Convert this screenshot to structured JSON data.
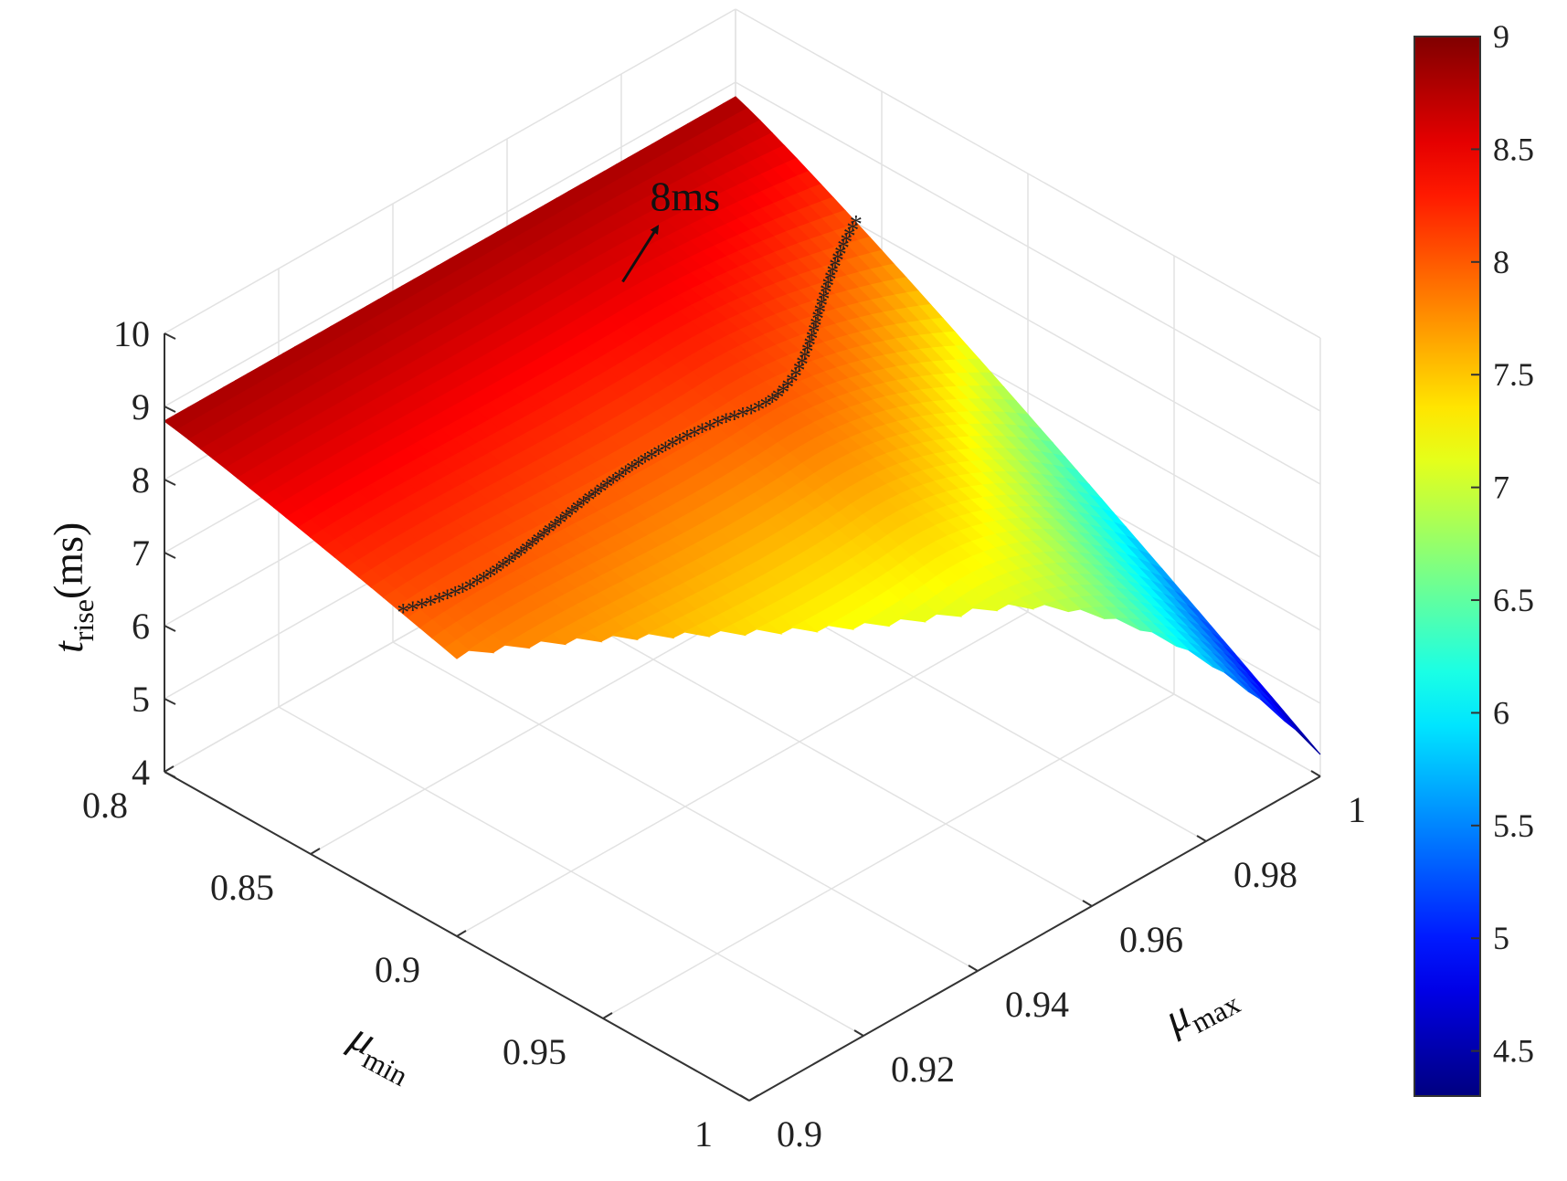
{
  "chart_data": {
    "type": "surface3d",
    "x_axis": {
      "name": "μ",
      "sub": "min",
      "ticks": [
        "0.8",
        "0.85",
        "0.9",
        "0.95",
        "1"
      ],
      "range": [
        0.8,
        1.0
      ]
    },
    "y_axis": {
      "name": "μ",
      "sub": "max",
      "ticks": [
        "0.9",
        "0.92",
        "0.94",
        "0.96",
        "0.98",
        "1"
      ],
      "range": [
        0.9,
        1.0
      ]
    },
    "z_axis": {
      "name": "t",
      "sub": "rise",
      "unit": "(ms)",
      "ticks": [
        "4",
        "5",
        "6",
        "7",
        "8",
        "9",
        "10"
      ],
      "range": [
        4,
        10
      ]
    },
    "colorbar": {
      "ticks": [
        "4.5",
        "5",
        "5.5",
        "6",
        "6.5",
        "7",
        "7.5",
        "8",
        "8.5",
        "9"
      ],
      "range": [
        4.3,
        9
      ],
      "colormap": "jet"
    },
    "surface": {
      "domain": "mu_min < mu_max",
      "corner_values": [
        {
          "mu_min": 0.8,
          "mu_max": 0.9,
          "t_rise": 8.8
        },
        {
          "mu_min": 0.8,
          "mu_max": 1.0,
          "t_rise": 8.8
        },
        {
          "mu_min": 0.9,
          "mu_max": 0.9,
          "t_rise": 7.8
        },
        {
          "mu_min": 0.96,
          "mu_max": 0.96,
          "t_rise": 7.1
        },
        {
          "mu_min": 1.0,
          "mu_max": 1.0,
          "t_rise": 4.3
        }
      ]
    },
    "contour": {
      "value": 8,
      "marker": "*",
      "color": "#000000"
    },
    "annotation": {
      "text": "8ms"
    },
    "grid": true
  }
}
